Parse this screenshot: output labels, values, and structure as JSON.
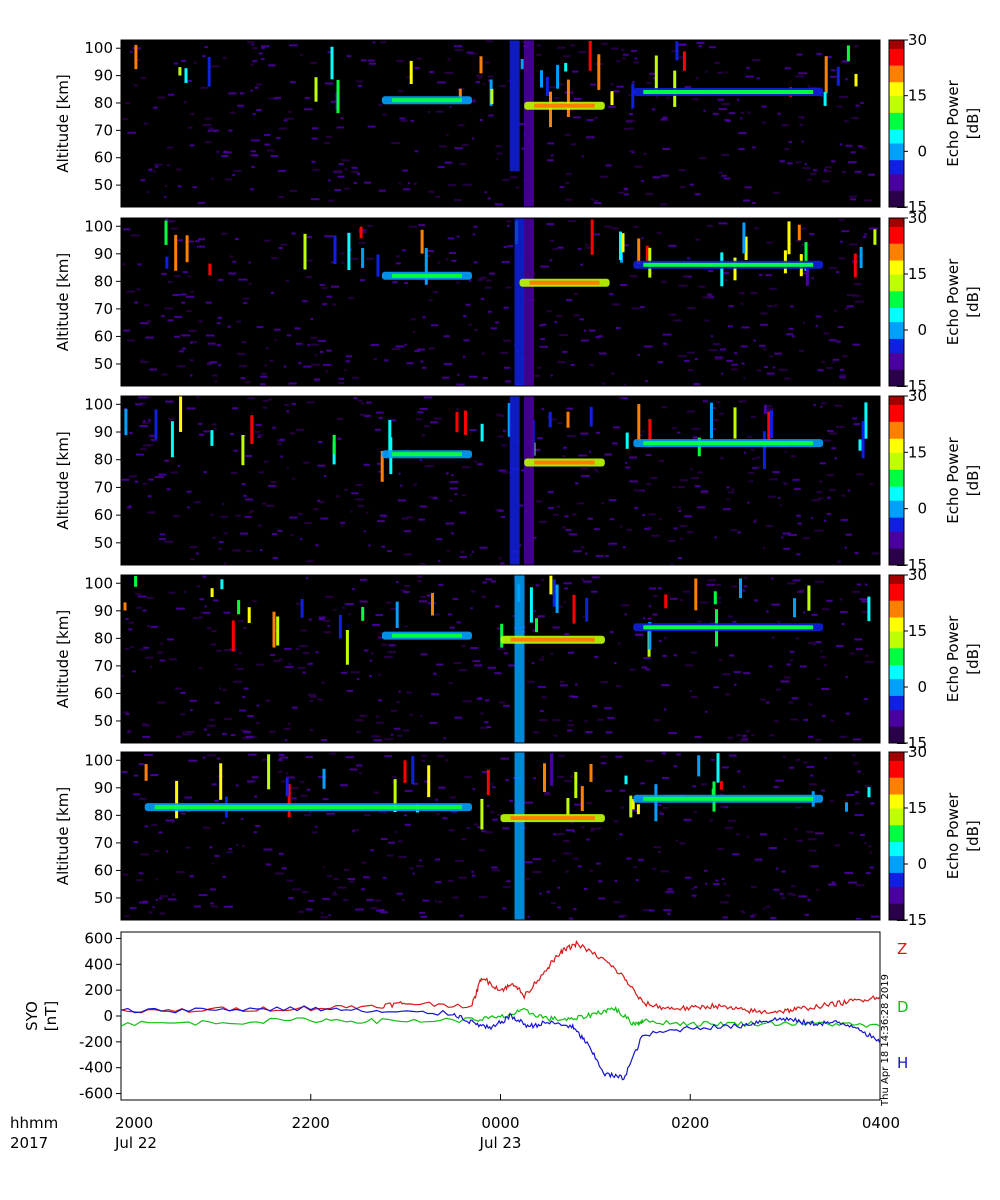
{
  "chart_data": [
    {
      "type": "heatmap",
      "panel": 1,
      "ylabel": "Altitude [km]",
      "yticks": [
        50,
        60,
        70,
        80,
        90,
        100
      ],
      "ylim": [
        42,
        103
      ],
      "colorbar": {
        "label_line1": "Echo Power",
        "label_line2": "[dB]",
        "ticks": [
          "30",
          "15",
          "0",
          "−15"
        ],
        "range": [
          -15,
          30
        ]
      },
      "layers": [
        {
          "alt": 81,
          "x0": 5.5,
          "x1": 7.4,
          "level": 0.35
        },
        {
          "alt": 79,
          "x0": 8.5,
          "x1": 10.2,
          "level": 0.6
        },
        {
          "alt": 84,
          "x0": 10.8,
          "x1": 14.8,
          "level": 0.3
        }
      ],
      "columns": [
        {
          "x": 8.3,
          "alt0": 55,
          "alt1": 103,
          "level": 0.3
        },
        {
          "x": 8.6,
          "alt0": 42,
          "alt1": 103,
          "level": 0.2
        }
      ]
    },
    {
      "type": "heatmap",
      "panel": 2,
      "ylabel": "Altitude [km]",
      "yticks": [
        50,
        60,
        70,
        80,
        90,
        100
      ],
      "ylim": [
        42,
        103
      ],
      "colorbar": {
        "label_line1": "Echo Power",
        "label_line2": "[dB]",
        "ticks": [
          "30",
          "15",
          "0",
          "−15"
        ],
        "range": [
          -15,
          30
        ]
      },
      "layers": [
        {
          "alt": 82,
          "x0": 5.5,
          "x1": 7.4,
          "level": 0.35
        },
        {
          "alt": 79.5,
          "x0": 8.4,
          "x1": 10.3,
          "level": 0.65
        },
        {
          "alt": 86,
          "x0": 10.8,
          "x1": 14.8,
          "level": 0.3
        }
      ],
      "columns": [
        {
          "x": 8.4,
          "alt0": 42,
          "alt1": 103,
          "level": 0.3
        },
        {
          "x": 8.6,
          "alt0": 42,
          "alt1": 103,
          "level": 0.2
        }
      ]
    },
    {
      "type": "heatmap",
      "panel": 3,
      "ylabel": "Altitude [km]",
      "yticks": [
        50,
        60,
        70,
        80,
        90,
        100
      ],
      "ylim": [
        42,
        103
      ],
      "colorbar": {
        "label_line1": "Echo Power",
        "label_line2": "[dB]",
        "ticks": [
          "30",
          "15",
          "0",
          "−15"
        ],
        "range": [
          -15,
          30
        ]
      },
      "layers": [
        {
          "alt": 82,
          "x0": 5.5,
          "x1": 7.4,
          "level": 0.35
        },
        {
          "alt": 79,
          "x0": 8.5,
          "x1": 10.2,
          "level": 0.65
        },
        {
          "alt": 86,
          "x0": 10.8,
          "x1": 14.8,
          "level": 0.35
        }
      ],
      "columns": [
        {
          "x": 8.3,
          "alt0": 42,
          "alt1": 103,
          "level": 0.3
        },
        {
          "x": 8.6,
          "alt0": 42,
          "alt1": 103,
          "level": 0.15
        }
      ]
    },
    {
      "type": "heatmap",
      "panel": 4,
      "ylabel": "Altitude [km]",
      "yticks": [
        50,
        60,
        70,
        80,
        90,
        100
      ],
      "ylim": [
        42,
        103
      ],
      "colorbar": {
        "label_line1": "Echo Power",
        "label_line2": "[dB]",
        "ticks": [
          "30",
          "15",
          "0",
          "−15"
        ],
        "range": [
          -15,
          30
        ]
      },
      "layers": [
        {
          "alt": 81,
          "x0": 5.5,
          "x1": 7.4,
          "level": 0.35
        },
        {
          "alt": 79.5,
          "x0": 8.0,
          "x1": 10.2,
          "level": 0.6
        },
        {
          "alt": 84,
          "x0": 10.8,
          "x1": 14.8,
          "level": 0.3
        }
      ],
      "columns": [
        {
          "x": 8.4,
          "alt0": 42,
          "alt1": 103,
          "level": 0.35
        }
      ]
    },
    {
      "type": "heatmap",
      "panel": 5,
      "ylabel": "Altitude [km]",
      "yticks": [
        50,
        60,
        70,
        80,
        90,
        100
      ],
      "ylim": [
        42,
        103
      ],
      "colorbar": {
        "label_line1": "Echo Power",
        "label_line2": "[dB]",
        "ticks": [
          "30",
          "15",
          "0",
          "−15"
        ],
        "range": [
          -15,
          30
        ]
      },
      "layers": [
        {
          "alt": 83,
          "x0": 0.5,
          "x1": 7.4,
          "level": 0.35
        },
        {
          "alt": 79,
          "x0": 8.0,
          "x1": 10.2,
          "level": 0.6
        },
        {
          "alt": 86,
          "x0": 10.8,
          "x1": 14.8,
          "level": 0.35
        }
      ],
      "columns": [
        {
          "x": 8.4,
          "alt0": 42,
          "alt1": 103,
          "level": 0.35
        }
      ]
    },
    {
      "type": "line",
      "panel": 6,
      "ylabel_line1": "SYO",
      "ylabel_line2": "[nT]",
      "yticks": [
        600,
        400,
        200,
        0,
        -200,
        -400,
        -600
      ],
      "ylim": [
        -650,
        650
      ],
      "xlim": [
        0,
        16
      ],
      "series": [
        {
          "name": "Z",
          "color": "#d81818",
          "x": [
            0,
            2,
            4,
            5.5,
            6,
            7.4,
            7.6,
            8,
            8.3,
            8.5,
            9,
            9.3,
            9.6,
            10.2,
            10.6,
            11,
            11.5,
            12,
            12.5,
            13,
            13.5,
            14,
            14.4,
            15,
            15.5,
            16
          ],
          "y": [
            30,
            50,
            60,
            80,
            100,
            80,
            300,
            200,
            250,
            150,
            380,
            500,
            560,
            430,
            300,
            100,
            60,
            60,
            80,
            50,
            30,
            40,
            60,
            90,
            120,
            150
          ]
        },
        {
          "name": "D",
          "color": "#10c010",
          "x": [
            0,
            2,
            4,
            5.5,
            7.4,
            8,
            8.5,
            9,
            9.5,
            10,
            10.4,
            10.8,
            11,
            12,
            13,
            14,
            15,
            16
          ],
          "y": [
            -60,
            -50,
            -30,
            -40,
            -30,
            -10,
            40,
            -20,
            -30,
            20,
            60,
            -60,
            -40,
            -60,
            -60,
            -55,
            -60,
            -80
          ]
        },
        {
          "name": "H",
          "color": "#1414d0",
          "x": [
            0,
            2,
            4,
            5.5,
            7,
            7.4,
            7.8,
            8.2,
            8.6,
            9,
            9.5,
            9.8,
            10.2,
            10.6,
            11,
            12,
            13,
            13.5,
            14,
            14.5,
            15,
            15.5,
            16
          ],
          "y": [
            40,
            50,
            60,
            30,
            20,
            -50,
            -100,
            0,
            -80,
            -50,
            -80,
            -200,
            -450,
            -480,
            -150,
            -90,
            -80,
            -40,
            -20,
            -60,
            -50,
            -80,
            -210
          ]
        }
      ],
      "legend_labels": [
        "Z",
        "D",
        "H"
      ],
      "timestamp": "Thu Apr 18 14:36:28 2019"
    }
  ],
  "xaxis": {
    "row_label_1": "hhmm",
    "row_label_2": "2017",
    "ticks": [
      {
        "x": 0,
        "time": "2000",
        "date": "Jul 22"
      },
      {
        "x": 4,
        "time": "2200",
        "date": ""
      },
      {
        "x": 8,
        "time": "0000",
        "date": "Jul 23"
      },
      {
        "x": 12,
        "time": "0200",
        "date": ""
      },
      {
        "x": 16,
        "time": "0400",
        "date": ""
      }
    ],
    "xlim": [
      0,
      16
    ]
  },
  "colors": {
    "background": "#000000",
    "scale": [
      "#000000",
      "#2a004a",
      "#4b00a0",
      "#1020e0",
      "#00a0ff",
      "#00ffff",
      "#00ff40",
      "#c0ff00",
      "#ffff00",
      "#ff8000",
      "#ff0000",
      "#a00000"
    ]
  }
}
